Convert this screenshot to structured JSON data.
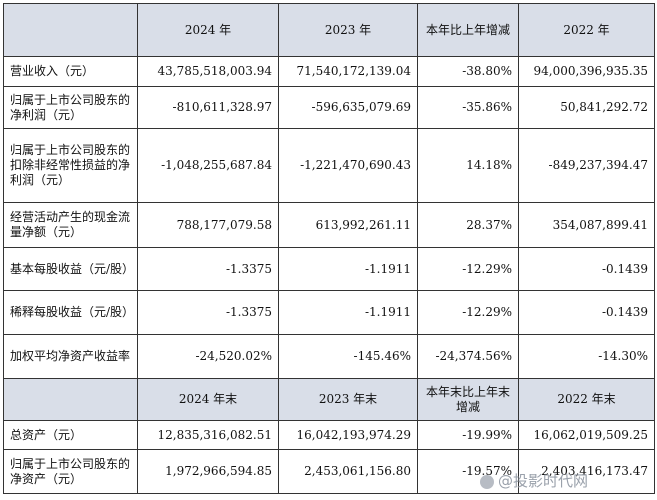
{
  "header1": {
    "c1": "2024 年",
    "c2": "2023 年",
    "c3": "本年比上年增减",
    "c4": "2022 年"
  },
  "rows1": [
    {
      "label": "营业收入（元）",
      "v1": "43,785,518,003.94",
      "v2": "71,540,172,139.04",
      "v3": "-38.80%",
      "v4": "94,000,396,935.35"
    },
    {
      "label": "归属于上市公司股东的净利润（元）",
      "v1": "-810,611,328.97",
      "v2": "-596,635,079.69",
      "v3": "-35.86%",
      "v4": "50,841,292.72"
    },
    {
      "label": "归属于上市公司股东的扣除非经常性损益的净利润（元）",
      "v1": "-1,048,255,687.84",
      "v2": "-1,221,470,690.43",
      "v3": "14.18%",
      "v4": "-849,237,394.47"
    },
    {
      "label": "经营活动产生的现金流量净额（元）",
      "v1": "788,177,079.58",
      "v2": "613,992,261.11",
      "v3": "28.37%",
      "v4": "354,087,899.41"
    },
    {
      "label": "基本每股收益（元/股）",
      "v1": "-1.3375",
      "v2": "-1.1911",
      "v3": "-12.29%",
      "v4": "-0.1439"
    },
    {
      "label": "稀释每股收益（元/股）",
      "v1": "-1.3375",
      "v2": "-1.1911",
      "v3": "-12.29%",
      "v4": "-0.1439"
    },
    {
      "label": "加权平均净资产收益率",
      "v1": "-24,520.02%",
      "v2": "-145.46%",
      "v3": "-24,374.56%",
      "v4": "-14.30%"
    }
  ],
  "header2": {
    "c1": "2024 年末",
    "c2": "2023 年末",
    "c3": "本年末比上年末增减",
    "c4": "2022 年末"
  },
  "rows2": [
    {
      "label": "总资产（元）",
      "v1": "12,835,316,082.51",
      "v2": "16,042,193,974.29",
      "v3": "-19.99%",
      "v4": "16,062,019,509.25"
    },
    {
      "label": "归属于上市公司股东的净资产（元）",
      "v1": "1,972,966,594.85",
      "v2": "2,453,061,156.80",
      "v3": "-19.57%",
      "v4": "2,403,416,173.47"
    }
  ],
  "watermark": {
    "text": "@投影时代网",
    "icon": "camera-icon"
  }
}
